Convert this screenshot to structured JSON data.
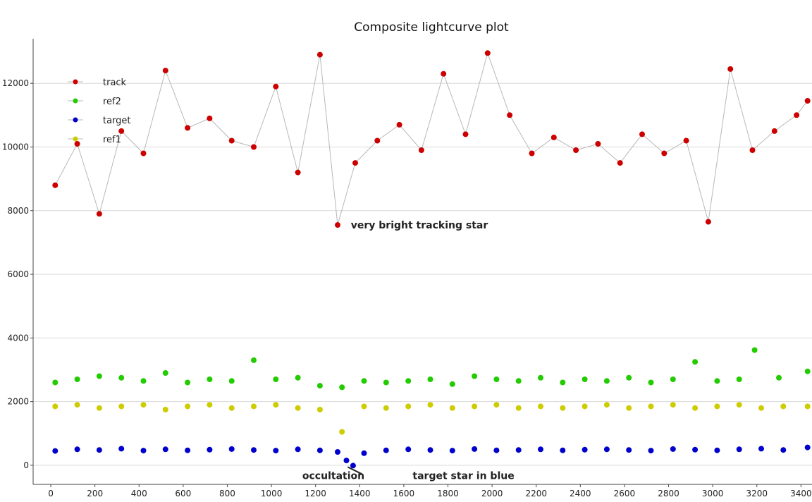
{
  "chart_data": {
    "type": "scatter",
    "title": "Composite lightcurve plot",
    "xlabel": "",
    "ylabel": "",
    "xlim": [
      -80,
      3450
    ],
    "ylim": [
      -600,
      13400
    ],
    "x_ticks": [
      0,
      200,
      400,
      600,
      800,
      1000,
      1200,
      1400,
      1600,
      1800,
      2000,
      2200,
      2400,
      2600,
      2800,
      3000,
      3200,
      3400
    ],
    "y_ticks": [
      0,
      2000,
      4000,
      6000,
      8000,
      10000,
      12000
    ],
    "grid": true,
    "legend_position": "top-left",
    "series": [
      {
        "name": "track",
        "color": "#cc0000",
        "connector_color": "#b8b8b8",
        "x": [
          20,
          120,
          220,
          320,
          420,
          520,
          620,
          720,
          820,
          920,
          1020,
          1120,
          1220,
          1300,
          1380,
          1480,
          1580,
          1680,
          1780,
          1880,
          1980,
          2080,
          2180,
          2280,
          2380,
          2480,
          2580,
          2680,
          2780,
          2880,
          2980,
          3080,
          3180,
          3280,
          3380,
          3430
        ],
        "y": [
          8800,
          10100,
          7900,
          10500,
          9800,
          12400,
          10600,
          10900,
          10200,
          10000,
          11900,
          9200,
          12900,
          7550,
          9500,
          10200,
          10700,
          9900,
          12300,
          10400,
          12950,
          11000,
          9800,
          10300,
          9900,
          10100,
          9500,
          10400,
          9800,
          10200,
          7650,
          12450,
          9900,
          10500,
          11000,
          11450
        ]
      },
      {
        "name": "ref2",
        "color": "#22cc00",
        "x": [
          20,
          120,
          220,
          320,
          420,
          520,
          620,
          720,
          820,
          920,
          1020,
          1120,
          1220,
          1320,
          1420,
          1520,
          1620,
          1720,
          1820,
          1920,
          2020,
          2120,
          2220,
          2320,
          2420,
          2520,
          2620,
          2720,
          2820,
          2920,
          3020,
          3120,
          3190,
          3300,
          3430
        ],
        "y": [
          2600,
          2700,
          2800,
          2750,
          2650,
          2900,
          2600,
          2700,
          2650,
          3300,
          2700,
          2750,
          2500,
          2450,
          2650,
          2600,
          2650,
          2700,
          2550,
          2800,
          2700,
          2650,
          2750,
          2600,
          2700,
          2650,
          2750,
          2600,
          2700,
          3250,
          2650,
          2700,
          3620,
          2750,
          2950
        ]
      },
      {
        "name": "target",
        "color": "#0000cc",
        "x": [
          20,
          120,
          220,
          320,
          420,
          520,
          620,
          720,
          820,
          920,
          1020,
          1120,
          1220,
          1300,
          1340,
          1370,
          1420,
          1520,
          1620,
          1720,
          1820,
          1920,
          2020,
          2120,
          2220,
          2320,
          2420,
          2520,
          2620,
          2720,
          2820,
          2920,
          3020,
          3120,
          3220,
          3320,
          3430
        ],
        "y": [
          450,
          500,
          480,
          520,
          460,
          500,
          470,
          490,
          510,
          480,
          460,
          500,
          470,
          420,
          150,
          -10,
          380,
          470,
          500,
          480,
          460,
          510,
          470,
          480,
          500,
          470,
          490,
          500,
          480,
          460,
          510,
          490,
          470,
          500,
          520,
          480,
          560
        ]
      },
      {
        "name": "ref1",
        "color": "#cccc00",
        "x": [
          20,
          120,
          220,
          320,
          420,
          520,
          620,
          720,
          820,
          920,
          1020,
          1120,
          1220,
          1320,
          1420,
          1520,
          1620,
          1720,
          1820,
          1920,
          2020,
          2120,
          2220,
          2320,
          2420,
          2520,
          2620,
          2720,
          2820,
          2920,
          3020,
          3120,
          3220,
          3320,
          3430
        ],
        "y": [
          1850,
          1900,
          1800,
          1850,
          1900,
          1750,
          1850,
          1900,
          1800,
          1850,
          1900,
          1800,
          1750,
          1050,
          1850,
          1800,
          1850,
          1900,
          1800,
          1850,
          1900,
          1800,
          1850,
          1800,
          1850,
          1900,
          1800,
          1850,
          1900,
          1800,
          1850,
          1900,
          1800,
          1850,
          1850
        ]
      }
    ],
    "annotations": [
      {
        "text": "very bright tracking star",
        "x": 1360,
        "y": 7550
      },
      {
        "text": "occultation",
        "x": 1140,
        "y": -320
      },
      {
        "text": "target star in blue",
        "x": 1640,
        "y": -320
      }
    ]
  }
}
